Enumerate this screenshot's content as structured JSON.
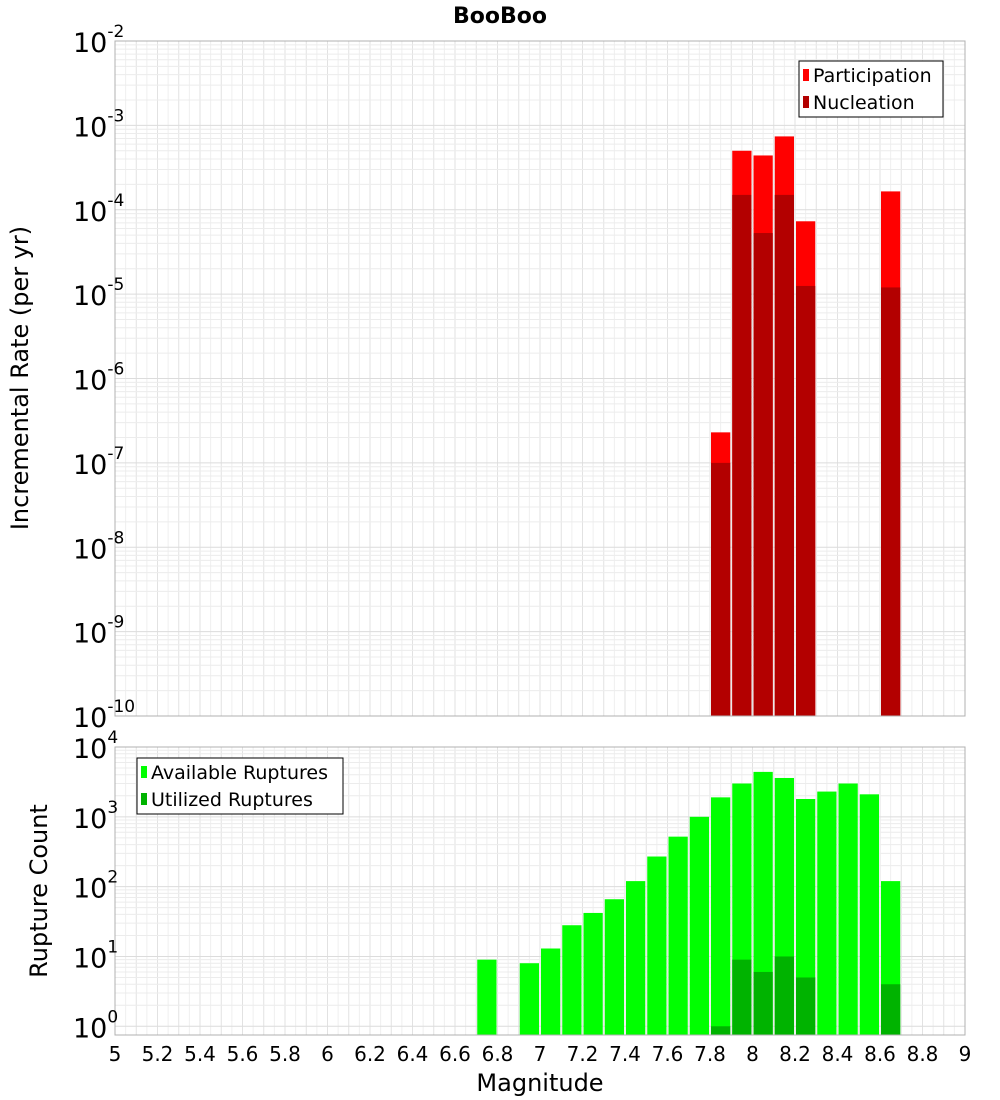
{
  "chart_data": [
    {
      "type": "bar",
      "title": "BooBoo",
      "xlabel": "",
      "ylabel": "Incremental Rate (per yr)",
      "xlim": [
        5,
        9
      ],
      "ylim": [
        1e-10,
        0.01
      ],
      "yscale": "log",
      "grid": true,
      "legend_position": "top-right",
      "bar_width": 0.1,
      "series": [
        {
          "name": "Participation",
          "color": "#ff0000",
          "x": [
            7.85,
            7.95,
            8.05,
            8.15,
            8.25,
            8.65
          ],
          "values": [
            2.3e-07,
            0.0005,
            0.00044,
            0.00074,
            7.3e-05,
            0.000165
          ]
        },
        {
          "name": "Nucleation",
          "color": "#b30000",
          "x": [
            7.85,
            7.95,
            8.05,
            8.15,
            8.25,
            8.65
          ],
          "values": [
            1e-07,
            0.00015,
            5.3e-05,
            0.00015,
            1.25e-05,
            1.2e-05
          ]
        }
      ]
    },
    {
      "type": "bar",
      "title": "",
      "xlabel": "Magnitude",
      "ylabel": "Rupture Count",
      "xlim": [
        5,
        9
      ],
      "ylim": [
        0.75,
        10000
      ],
      "yscale": "log",
      "grid": true,
      "legend_position": "top-left",
      "bar_width": 0.1,
      "x_ticks": [
        "5",
        "5.2",
        "5.4",
        "5.6",
        "5.8",
        "6",
        "6.2",
        "6.4",
        "6.6",
        "6.8",
        "7",
        "7.2",
        "7.4",
        "7.6",
        "7.8",
        "8",
        "8.2",
        "8.4",
        "8.6",
        "8.8",
        "9"
      ],
      "series": [
        {
          "name": "Available Ruptures",
          "color": "#00ff00",
          "x": [
            6.75,
            6.95,
            7.05,
            7.15,
            7.25,
            7.35,
            7.45,
            7.55,
            7.65,
            7.75,
            7.85,
            7.95,
            8.05,
            8.15,
            8.25,
            8.35,
            8.45,
            8.55,
            8.65
          ],
          "values": [
            9,
            8,
            13,
            28,
            42,
            66,
            120,
            270,
            520,
            1000,
            1900,
            3000,
            4400,
            3600,
            1800,
            2300,
            3000,
            2100,
            120
          ]
        },
        {
          "name": "Utilized Ruptures",
          "color": "#00b300",
          "x": [
            7.85,
            7.95,
            8.05,
            8.15,
            8.25,
            8.65
          ],
          "values": [
            1,
            9,
            6,
            10,
            5,
            4
          ]
        }
      ]
    }
  ]
}
